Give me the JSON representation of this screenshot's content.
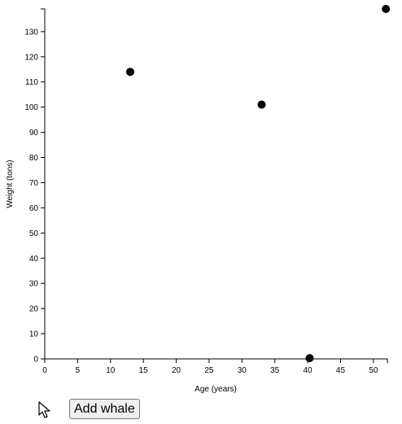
{
  "chart_data": {
    "type": "scatter",
    "xlabel": "Age (years)",
    "ylabel": "Weight (tons)",
    "xlim": [
      0,
      52
    ],
    "ylim": [
      0,
      139
    ],
    "x_ticks": [
      0,
      5,
      10,
      15,
      20,
      25,
      30,
      35,
      40,
      45,
      50
    ],
    "y_ticks": [
      0,
      10,
      20,
      30,
      40,
      50,
      60,
      70,
      80,
      90,
      100,
      110,
      120,
      130
    ],
    "grid": false,
    "point_color": "#000000",
    "points": [
      {
        "x": 13,
        "y": 114
      },
      {
        "x": 33,
        "y": 101
      },
      {
        "x": 40.3,
        "y": 0.3
      },
      {
        "x": 51.9,
        "y": 139
      }
    ]
  },
  "controls": {
    "add_button_label": "Add whale",
    "cursor_icon": "arrow-cursor-icon"
  }
}
